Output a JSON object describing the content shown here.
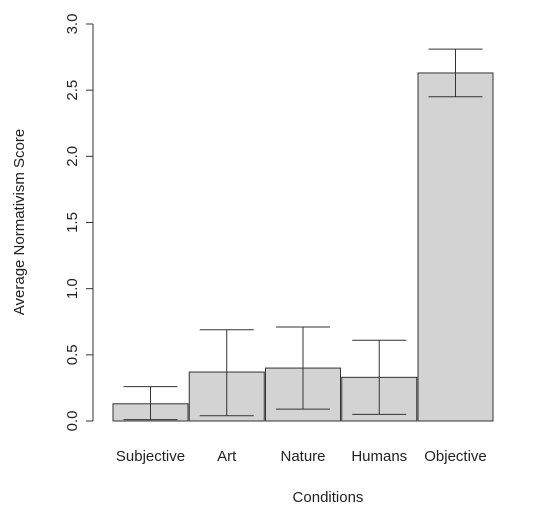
{
  "chart_data": {
    "type": "bar",
    "title": "",
    "xlabel": "Conditions",
    "ylabel": "Average Normativism Score",
    "categories": [
      "Subjective",
      "Art",
      "Nature",
      "Humans",
      "Objective"
    ],
    "values": [
      0.13,
      0.37,
      0.4,
      0.33,
      2.63
    ],
    "error_low": [
      0.01,
      0.04,
      0.09,
      0.05,
      2.45
    ],
    "error_high": [
      0.26,
      0.69,
      0.71,
      0.61,
      2.81
    ],
    "ylim": [
      0,
      3.0
    ],
    "yticks": [
      "0.0",
      "0.5",
      "1.0",
      "1.5",
      "2.0",
      "2.5",
      "3.0"
    ],
    "bar_color": "#d3d3d3",
    "line_color": "#333333",
    "grid": false
  }
}
